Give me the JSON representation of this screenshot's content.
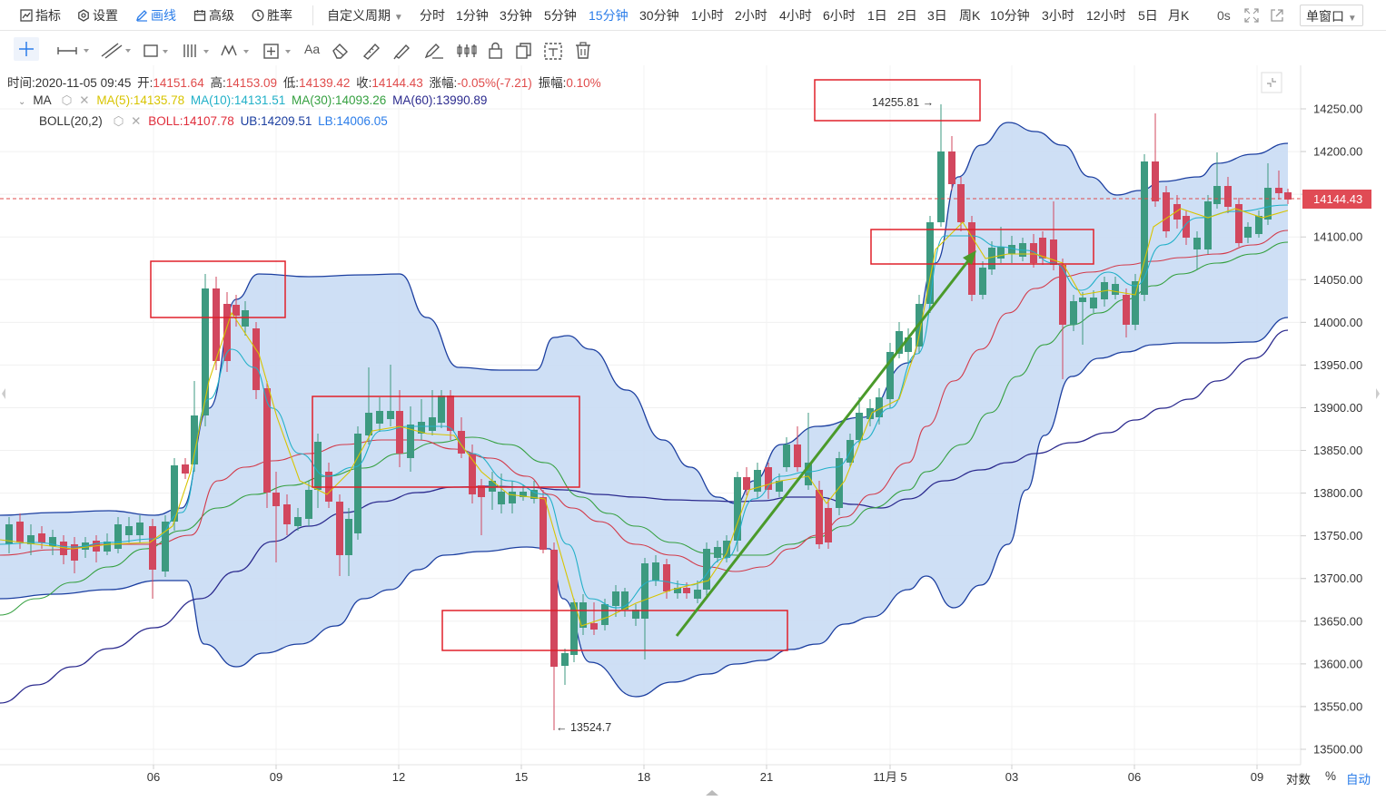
{
  "toolbar": {
    "indicator_label": "指标",
    "settings_label": "设置",
    "draw_label": "画线",
    "advanced_label": "高级",
    "winrate_label": "胜率",
    "custom_period_label": "自定义周期",
    "periods": [
      "分时",
      "1分钟",
      "3分钟",
      "5分钟",
      "15分钟",
      "30分钟",
      "1小时",
      "2小时",
      "4小时",
      "6小时",
      "1日",
      "2日",
      "3日",
      "周K",
      "10分钟",
      "3小时",
      "12小时",
      "5日",
      "月K"
    ],
    "active_period": "15分钟",
    "countdown": "0s",
    "window_mode": "单窗口"
  },
  "drawing_tools": {
    "text_tool": "Aa"
  },
  "info_bar": {
    "time_label": "时间:",
    "time": "2020-11-05 09:45",
    "open_label": "开:",
    "open": "14151.64",
    "high_label": "高:",
    "high": "14153.09",
    "low_label": "低:",
    "low": "14139.42",
    "close_label": "收:",
    "close": "14144.43",
    "change_label": "涨幅:",
    "change": "-0.05%(-7.21)",
    "amplitude_label": "振幅:",
    "amplitude": "0.10%"
  },
  "ma_legend": {
    "name": "MA",
    "ma5": "MA(5):14135.78",
    "ma10": "MA(10):14131.51",
    "ma30": "MA(30):14093.26",
    "ma60": "MA(60):13990.89"
  },
  "boll_legend": {
    "name": "BOLL(20,2)",
    "boll": "BOLL:14107.78",
    "ub": "UB:14209.51",
    "lb": "LB:14006.05"
  },
  "annotations": {
    "high_marker": "14255.81 →",
    "low_marker": "← 13524.7"
  },
  "price_axis": {
    "ticks": [
      "14250.00",
      "14200.00",
      "14150.00",
      "14100.00",
      "14050.00",
      "14000.00",
      "13950.00",
      "13900.00",
      "13850.00",
      "13800.00",
      "13750.00",
      "13700.00",
      "13650.00",
      "13600.00",
      "13550.00",
      "13500.00"
    ],
    "current_price": "14144.43"
  },
  "time_axis": {
    "ticks": [
      "06",
      "09",
      "12",
      "15",
      "18",
      "21",
      "11月 5",
      "03",
      "06",
      "09"
    ]
  },
  "footer": {
    "log_label": "对数",
    "percent_label": "%",
    "auto_label": "自动"
  },
  "colors": {
    "up": "#3d9a80",
    "down": "#d2475e",
    "boll_fill": "#c9dcf4",
    "accent": "#2b7de9"
  }
}
